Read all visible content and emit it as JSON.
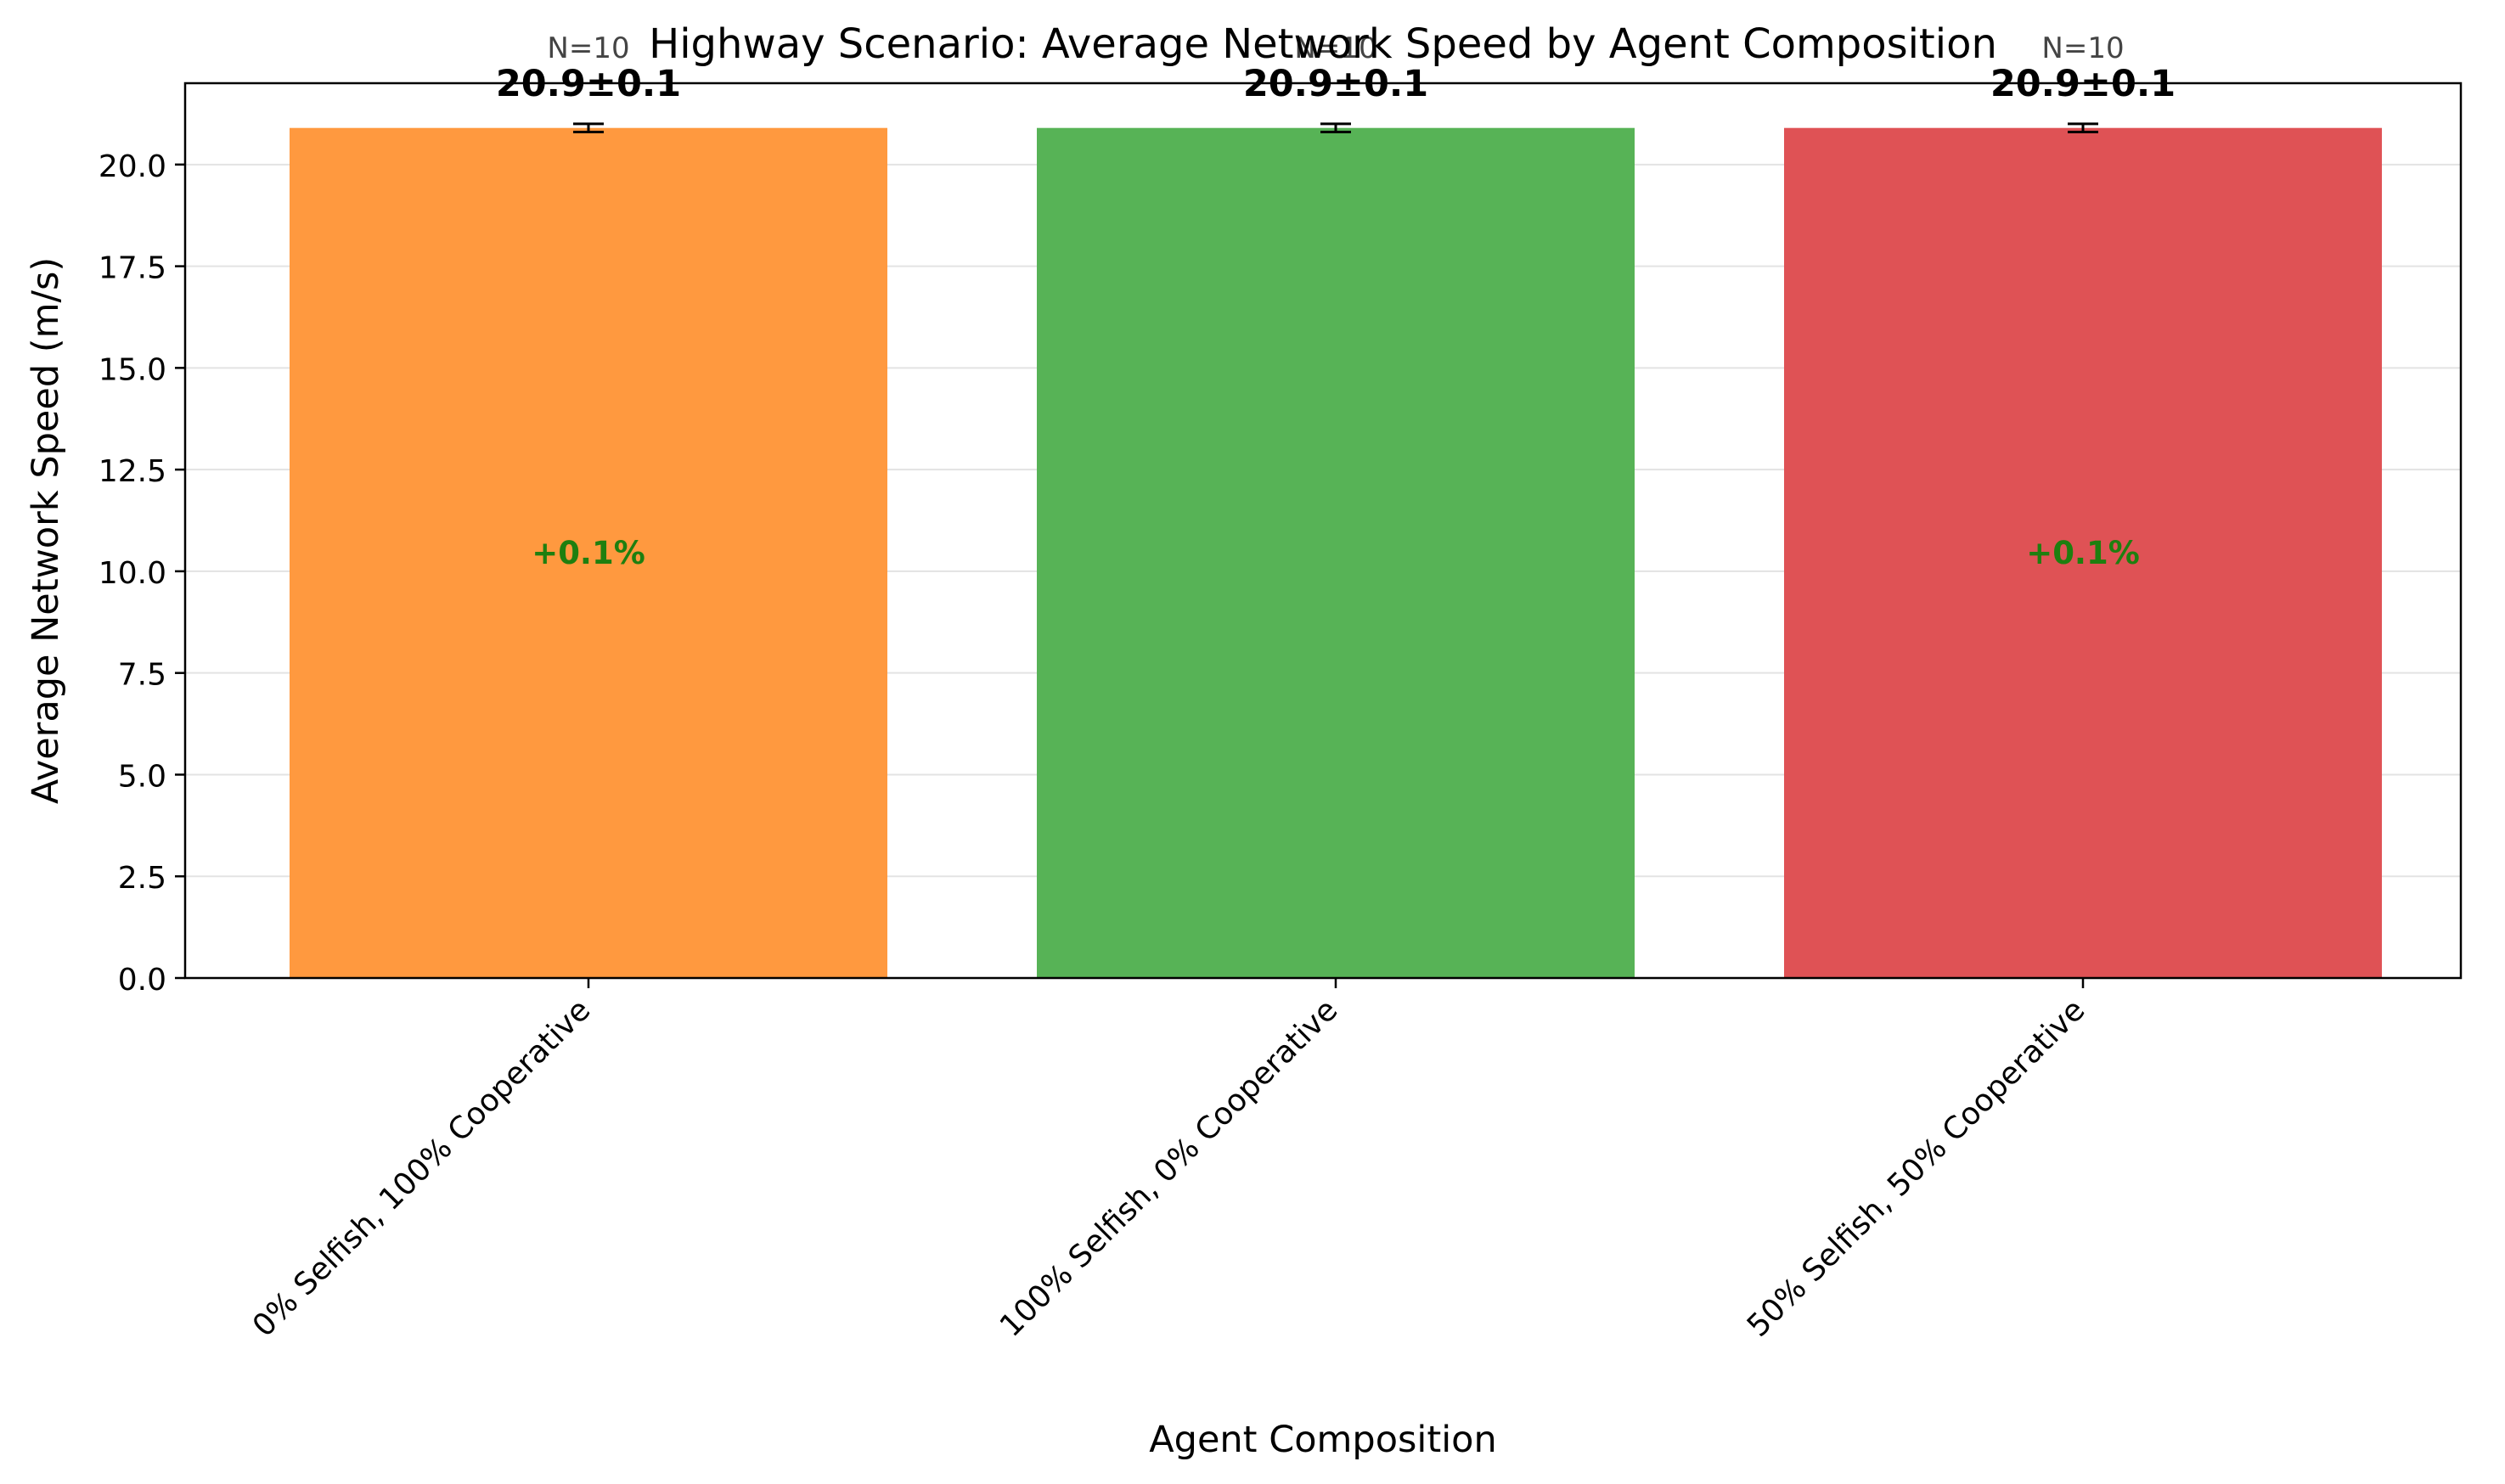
{
  "chart_data": {
    "type": "bar",
    "title": "Highway Scenario: Average Network Speed by Agent Composition",
    "xlabel": "Agent Composition",
    "ylabel": "Average Network Speed (m/s)",
    "ylim": [
      0,
      22
    ],
    "yticks": [
      "0.0",
      "2.5",
      "5.0",
      "7.5",
      "10.0",
      "12.5",
      "15.0",
      "17.5",
      "20.0"
    ],
    "grid": "y",
    "categories": [
      "0% Selfish, 100% Cooperative",
      "100% Selfish, 0% Cooperative",
      "50% Selfish, 50% Cooperative"
    ],
    "values": [
      20.9,
      20.9,
      20.9
    ],
    "errors": [
      0.1,
      0.1,
      0.1
    ],
    "value_labels": [
      "20.9±0.1",
      "20.9±0.1",
      "20.9±0.1"
    ],
    "n_labels": [
      "N=10",
      "N=10",
      "N=10"
    ],
    "change_labels": [
      "+0.1%",
      "",
      "+0.1%"
    ],
    "colors": [
      "#ff993f",
      "#57b356",
      "#df5255"
    ],
    "change_label_color": "#1e7f0f"
  }
}
